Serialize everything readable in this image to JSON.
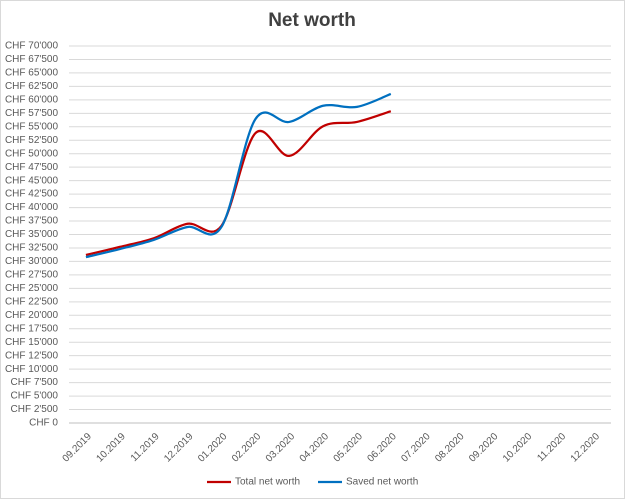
{
  "chart_data": {
    "type": "line",
    "title": "Net worth",
    "categories": [
      "09.2019",
      "10.2019",
      "11.2019",
      "12.2019",
      "01.2020",
      "02.2020",
      "03.2020",
      "04.2020",
      "05.2020",
      "06.2020",
      "07.2020",
      "08.2020",
      "09.2020",
      "10.2020",
      "11.2020",
      "12.2020"
    ],
    "series": [
      {
        "name": "Total net worth",
        "color": "#c00000",
        "values": [
          31200,
          32700,
          34300,
          37000,
          36600,
          53800,
          49600,
          55100,
          55900,
          57900,
          null,
          null,
          null,
          null,
          null,
          null
        ]
      },
      {
        "name": "Saved net worth",
        "color": "#0070c0",
        "values": [
          30800,
          32300,
          34000,
          36400,
          36400,
          56400,
          55900,
          58900,
          58700,
          61100,
          null,
          null,
          null,
          null,
          null,
          null
        ]
      }
    ],
    "ylim": [
      0,
      70000
    ],
    "yticks": [
      {
        "value": 0,
        "label": "CHF 0"
      },
      {
        "value": 2500,
        "label": "CHF 2'500"
      },
      {
        "value": 5000,
        "label": "CHF 5'000"
      },
      {
        "value": 7500,
        "label": "CHF 7'500"
      },
      {
        "value": 10000,
        "label": "CHF 10'000"
      },
      {
        "value": 12500,
        "label": "CHF 12'500"
      },
      {
        "value": 15000,
        "label": "CHF 15'000"
      },
      {
        "value": 17500,
        "label": "CHF 17'500"
      },
      {
        "value": 20000,
        "label": "CHF 20'000"
      },
      {
        "value": 22500,
        "label": "CHF 22'500"
      },
      {
        "value": 25000,
        "label": "CHF 25'000"
      },
      {
        "value": 27500,
        "label": "CHF 27'500"
      },
      {
        "value": 30000,
        "label": "CHF 30'000"
      },
      {
        "value": 32500,
        "label": "CHF 32'500"
      },
      {
        "value": 35000,
        "label": "CHF 35'000"
      },
      {
        "value": 37500,
        "label": "CHF 37'500"
      },
      {
        "value": 40000,
        "label": "CHF 40'000"
      },
      {
        "value": 42500,
        "label": "CHF 42'500"
      },
      {
        "value": 45000,
        "label": "CHF 45'000"
      },
      {
        "value": 47500,
        "label": "CHF 47'500"
      },
      {
        "value": 50000,
        "label": "CHF 50'000"
      },
      {
        "value": 52500,
        "label": "CHF 52'500"
      },
      {
        "value": 55000,
        "label": "CHF 55'000"
      },
      {
        "value": 57500,
        "label": "CHF 57'500"
      },
      {
        "value": 60000,
        "label": "CHF 60'000"
      },
      {
        "value": 62500,
        "label": "CHF 62'500"
      },
      {
        "value": 65000,
        "label": "CHF 65'000"
      },
      {
        "value": 67500,
        "label": "CHF 67'500"
      },
      {
        "value": 70000,
        "label": "CHF 70'000"
      }
    ],
    "grid": true,
    "legend": "bottom"
  }
}
